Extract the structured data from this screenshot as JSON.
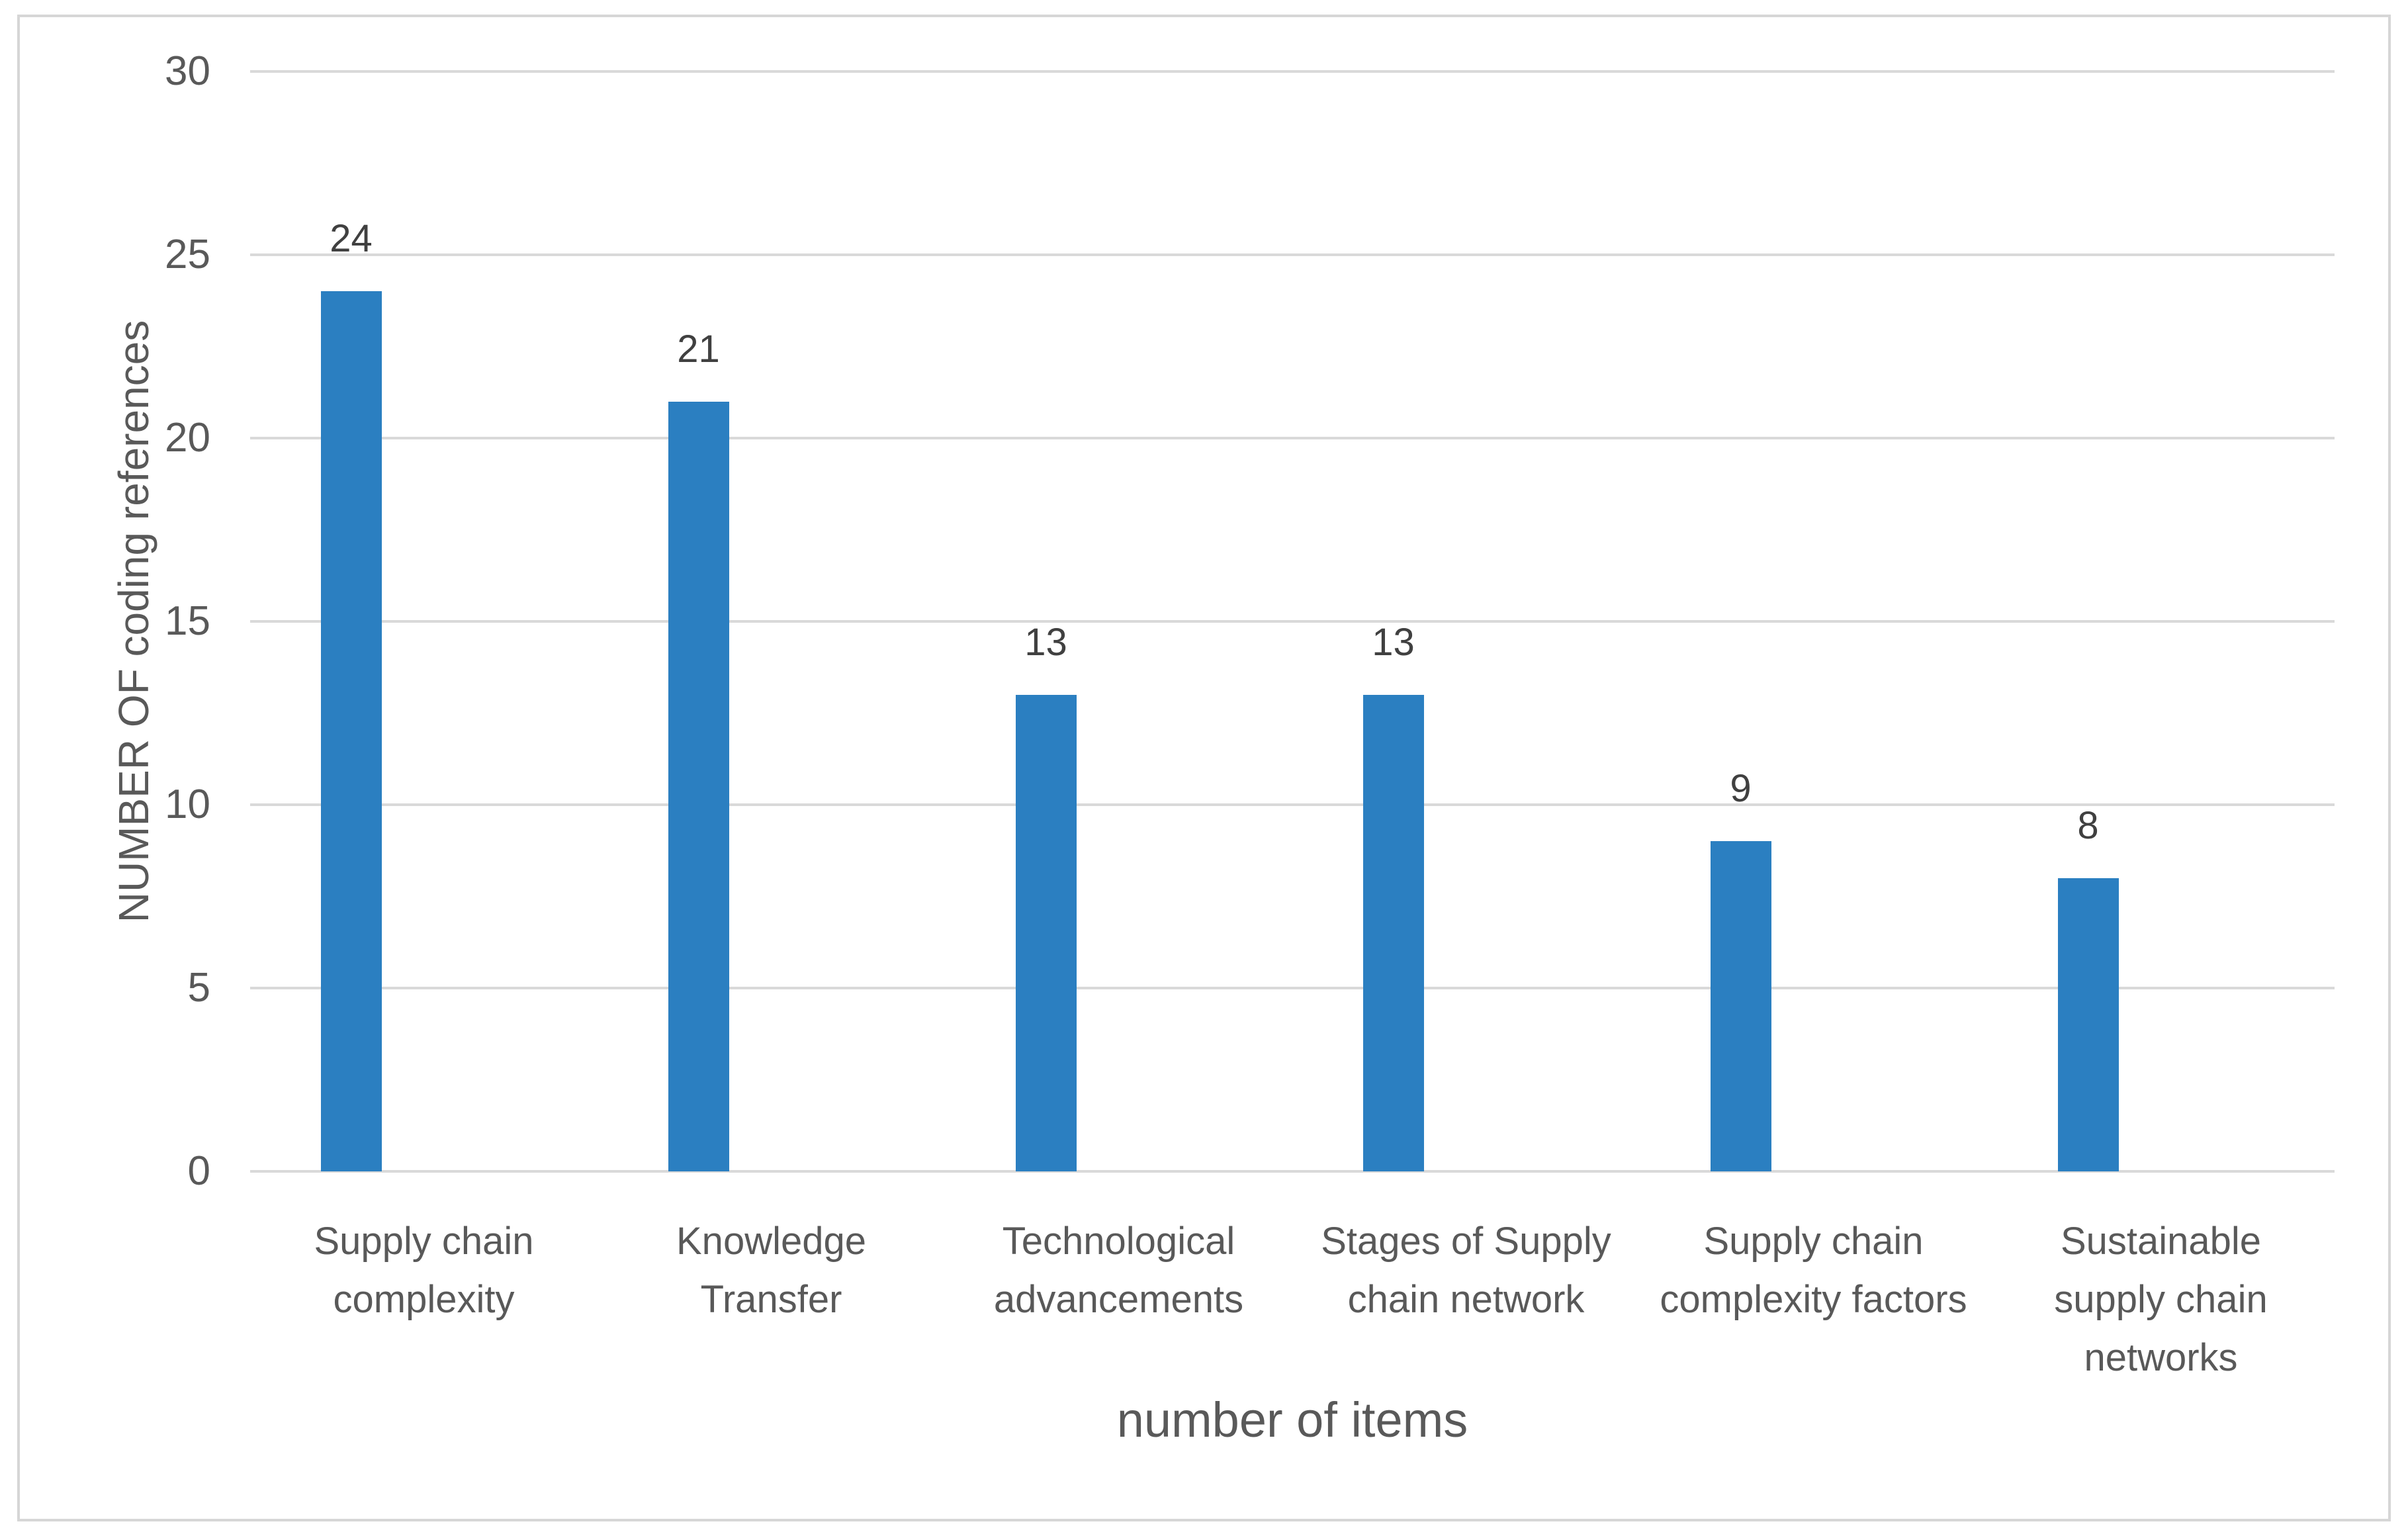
{
  "chart_data": {
    "type": "bar",
    "categories": [
      "Supply chain complexity",
      "Knowledge Transfer",
      "Technological advancements",
      "Stages of Supply chain network",
      "Supply chain complexity factors",
      "Sustainable supply chain networks"
    ],
    "values": [
      24,
      21,
      13,
      13,
      9,
      8
    ],
    "value_labels": [
      "24",
      "21",
      "13",
      "13",
      "9",
      "8"
    ],
    "title": "",
    "xlabel": "number of items",
    "ylabel": "NUMBER OF coding references",
    "yticks": [
      0,
      5,
      10,
      15,
      20,
      25,
      30
    ],
    "ylim": [
      0,
      30
    ],
    "grid": true,
    "legend": "none",
    "colors": {
      "bar": "#2b7fc1",
      "gridline": "#d9d9d9",
      "axis_text": "#595959",
      "value_text": "#404040",
      "frame_border": "#d6d6d6",
      "background": "#ffffff"
    }
  }
}
